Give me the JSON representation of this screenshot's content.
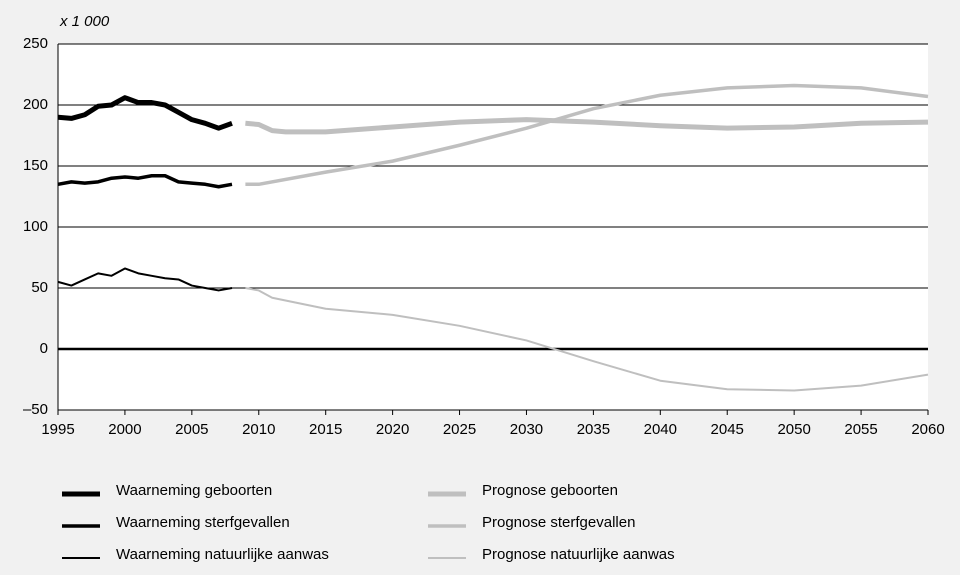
{
  "chart_data": {
    "type": "line",
    "unit_label": "x 1 000",
    "xlim": [
      1995,
      2060
    ],
    "xticks": [
      1995,
      2000,
      2005,
      2010,
      2015,
      2020,
      2025,
      2030,
      2035,
      2040,
      2045,
      2050,
      2055,
      2060
    ],
    "ylim": [
      -50,
      250
    ],
    "yticks": [
      {
        "value": -50,
        "label": "–50"
      },
      0,
      50,
      100,
      150,
      200,
      250
    ],
    "grid": true,
    "series": [
      {
        "name": "Waarneming geboorten",
        "color": "#000000",
        "line_width": 5,
        "x": [
          1995,
          1996,
          1997,
          1998,
          1999,
          2000,
          2001,
          2002,
          2003,
          2004,
          2005,
          2006,
          2007,
          2008
        ],
        "values": [
          190,
          189,
          192,
          199,
          200,
          206,
          202,
          202,
          200,
          194,
          188,
          185,
          181,
          185
        ]
      },
      {
        "name": "Waarneming sterfgevallen",
        "color": "#000000",
        "line_width": 3.5,
        "x": [
          1995,
          1996,
          1997,
          1998,
          1999,
          2000,
          2001,
          2002,
          2003,
          2004,
          2005,
          2006,
          2007,
          2008
        ],
        "values": [
          135,
          137,
          136,
          137,
          140,
          141,
          140,
          142,
          142,
          137,
          136,
          135,
          133,
          135
        ]
      },
      {
        "name": "Waarneming natuurlijke aanwas",
        "color": "#000000",
        "line_width": 2,
        "x": [
          1995,
          1996,
          1997,
          1998,
          1999,
          2000,
          2001,
          2002,
          2003,
          2004,
          2005,
          2006,
          2007,
          2008
        ],
        "values": [
          55,
          52,
          57,
          62,
          60,
          66,
          62,
          60,
          58,
          57,
          52,
          50,
          48,
          50
        ]
      },
      {
        "name": "Prognose geboorten",
        "color": "#bfbfbf",
        "line_width": 5,
        "x": [
          2009,
          2010,
          2011,
          2012,
          2015,
          2020,
          2025,
          2030,
          2035,
          2040,
          2045,
          2050,
          2055,
          2060
        ],
        "values": [
          185,
          184,
          179,
          178,
          178,
          182,
          186,
          188,
          186,
          183,
          181,
          182,
          185,
          186
        ]
      },
      {
        "name": "Prognose sterfgevallen",
        "color": "#bfbfbf",
        "line_width": 3.5,
        "x": [
          2009,
          2010,
          2015,
          2020,
          2025,
          2030,
          2035,
          2040,
          2045,
          2050,
          2055,
          2060
        ],
        "values": [
          135,
          135,
          145,
          154,
          167,
          181,
          197,
          208,
          214,
          216,
          214,
          207
        ]
      },
      {
        "name": "Prognose natuurlijke aanwas",
        "color": "#bfbfbf",
        "line_width": 2,
        "x": [
          2009,
          2010,
          2011,
          2015,
          2020,
          2025,
          2030,
          2035,
          2040,
          2045,
          2050,
          2055,
          2060
        ],
        "values": [
          50,
          48,
          42,
          33,
          28,
          19,
          7,
          -10,
          -26,
          -33,
          -34,
          -30,
          -21
        ]
      }
    ]
  }
}
